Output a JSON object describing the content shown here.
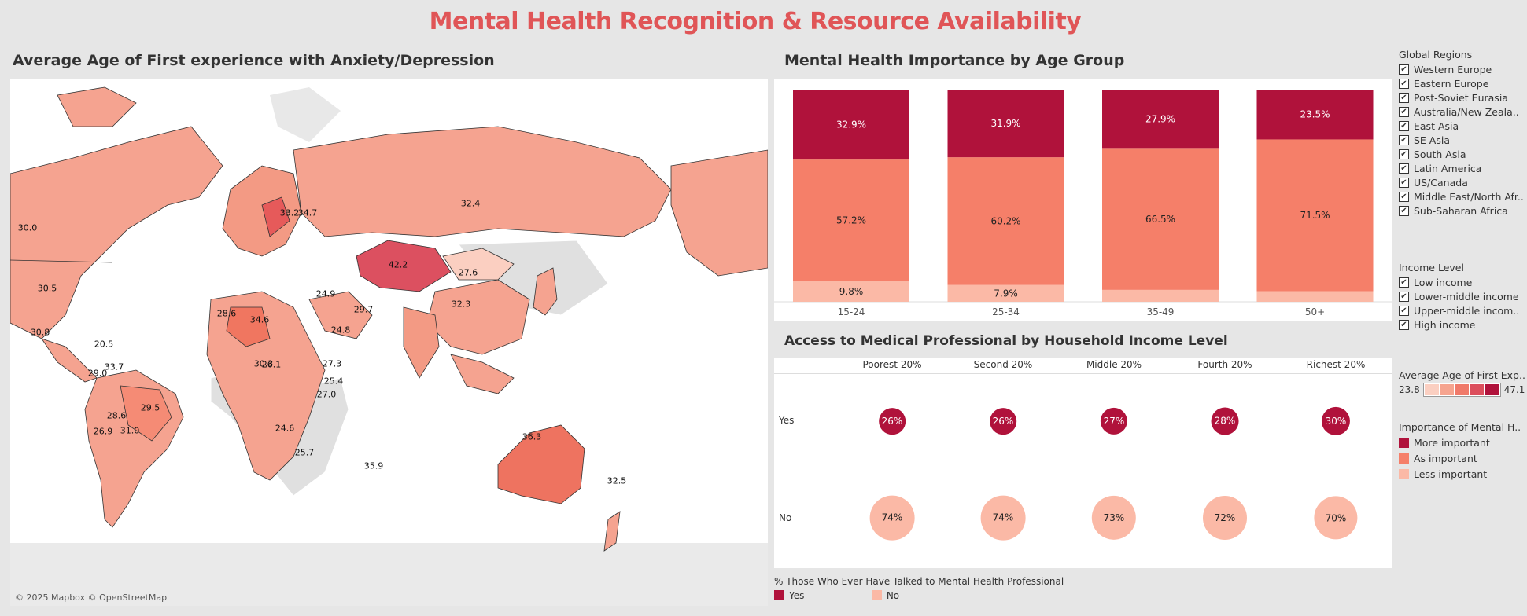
{
  "title": "Mental Health Recognition & Resource Availability",
  "colors": {
    "title": "#e05557",
    "more_important": "#b0123b",
    "as_important": "#f57f69",
    "less_important": "#fbb9a6"
  },
  "map": {
    "title": "Average Age of First experience with Anxiety/Depression",
    "attribution": "© 2025 Mapbox © OpenStreetMap",
    "labels": [
      "30.0",
      "30.5",
      "30.8",
      "32.4",
      "42.2",
      "27.6",
      "32.3",
      "36.3",
      "29.5",
      "35.9",
      "34.6",
      "33.2",
      "34.7",
      "28.6",
      "29.7",
      "24.8",
      "24.9",
      "20.5",
      "29.0",
      "33.7",
      "28.6",
      "26.9",
      "31.0",
      "30.3",
      "27.3",
      "25.4",
      "27.0",
      "26.1",
      "24.6",
      "25.7",
      "32.5"
    ]
  },
  "chart_data": [
    {
      "type": "bar",
      "title": "Mental Health Importance by Age Group",
      "stacked": true,
      "categories": [
        "15-24",
        "25-34",
        "35-49",
        "50+"
      ],
      "ylim": [
        0,
        100
      ],
      "series": [
        {
          "name": "Less important",
          "color": "#fbb9a6",
          "values": [
            9.8,
            7.9,
            5.6,
            5.0
          ],
          "labels": [
            "9.8%",
            "7.9%",
            "",
            ""
          ]
        },
        {
          "name": "As important",
          "color": "#f57f69",
          "values": [
            57.2,
            60.2,
            66.5,
            71.5
          ],
          "labels": [
            "57.2%",
            "60.2%",
            "66.5%",
            "71.5%"
          ]
        },
        {
          "name": "More important",
          "color": "#b0123b",
          "values": [
            32.9,
            31.9,
            27.9,
            23.5
          ],
          "labels": [
            "32.9%",
            "31.9%",
            "27.9%",
            "23.5%"
          ]
        }
      ]
    },
    {
      "type": "scatter",
      "title": "Access to Medical Professional by Household Income Level",
      "categories": [
        "Poorest 20%",
        "Second 20%",
        "Middle 20%",
        "Fourth 20%",
        "Richest 20%"
      ],
      "rows": [
        "Yes",
        "No"
      ],
      "series": [
        {
          "name": "Yes",
          "color": "#b0123b",
          "values": [
            26,
            26,
            27,
            28,
            30
          ],
          "labels": [
            "26%",
            "26%",
            "27%",
            "28%",
            "30%"
          ]
        },
        {
          "name": "No",
          "color": "#fbb9a6",
          "values": [
            74,
            74,
            73,
            72,
            70
          ],
          "labels": [
            "74%",
            "74%",
            "73%",
            "72%",
            "70%"
          ]
        }
      ]
    }
  ],
  "access_legend": {
    "title": "% Those Who Ever Have Talked to Mental Health Professional",
    "yes": "Yes",
    "no": "No"
  },
  "filters": {
    "regions": {
      "title": "Global Regions",
      "items": [
        "Western Europe",
        "Eastern Europe",
        "Post-Soviet Eurasia",
        "Australia/New Zeala..",
        "East Asia",
        "SE Asia",
        "South Asia",
        "Latin America",
        "US/Canada",
        "Middle East/North Afr..",
        "Sub-Saharan Africa"
      ]
    },
    "income": {
      "title": "Income Level",
      "items": [
        "Low income",
        "Lower-middle income",
        "Upper-middle incom..",
        "High income"
      ]
    }
  },
  "age_legend": {
    "title": "Average Age of First Exp..",
    "min": "23.8",
    "max": "47.1"
  },
  "importance_legend": {
    "title": "Importance of Mental H..",
    "items": [
      "More important",
      "As important",
      "Less important"
    ]
  },
  "check_glyph": "✔"
}
